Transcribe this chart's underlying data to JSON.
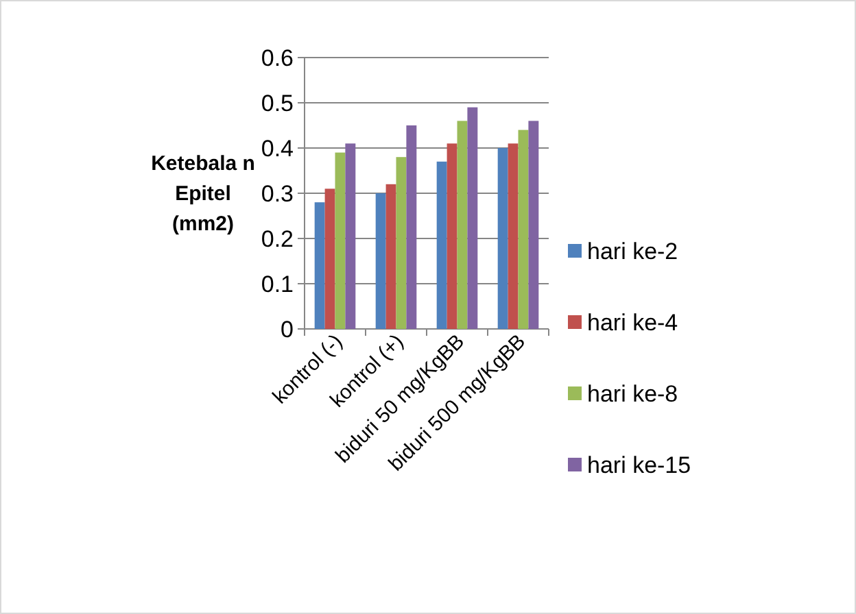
{
  "chart_data": {
    "type": "bar",
    "ylabel": "Ketebala n Epitel (mm2)",
    "categories": [
      "kontrol (-)",
      "kontrol (+)",
      "biduri 50 mg/KgBB",
      "biduri 500 mg/KgBB"
    ],
    "series": [
      {
        "name": "hari ke-2",
        "color": "#4f81bd",
        "values": [
          0.28,
          0.3,
          0.37,
          0.4
        ]
      },
      {
        "name": "hari ke-4",
        "color": "#c0504d",
        "values": [
          0.31,
          0.32,
          0.41,
          0.41
        ]
      },
      {
        "name": "hari ke-8",
        "color": "#9bbb59",
        "values": [
          0.39,
          0.38,
          0.46,
          0.44
        ]
      },
      {
        "name": "hari ke-15",
        "color": "#8064a2",
        "values": [
          0.41,
          0.45,
          0.49,
          0.46
        ]
      }
    ],
    "ylim": [
      0,
      0.6
    ],
    "yticks": [
      0,
      0.1,
      0.2,
      0.3,
      0.4,
      0.5,
      0.6
    ],
    "grid": "y",
    "legend": "right"
  }
}
